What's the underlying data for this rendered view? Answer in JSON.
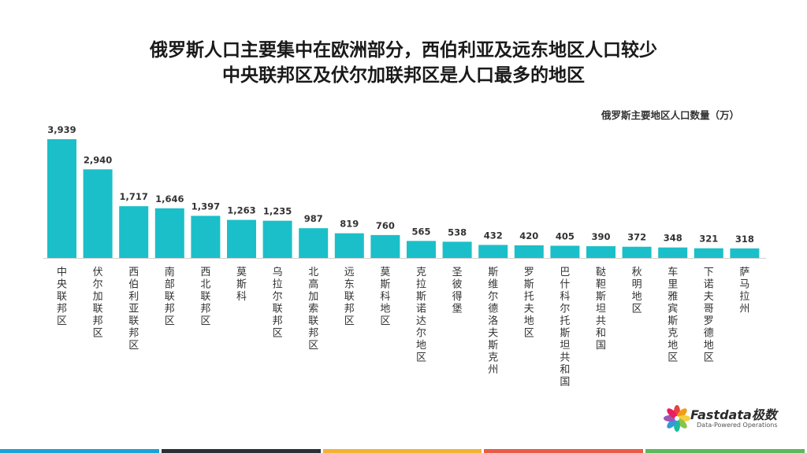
{
  "title_line1": "俄罗斯人口主要集中在欧洲部分，西伯利亚及远东地区人口较少",
  "title_line2": "中央联邦区及伏尔加联邦区是人口最多的地区",
  "unit_label": "俄罗斯主要地区人口数量（万）",
  "logo": {
    "name": "Fastdata极数",
    "tagline": "Data-Powered Operations"
  },
  "colors": {
    "bar": "#1bbfc9",
    "footer": [
      "#1aa3d8",
      "#2b2f36",
      "#f2b233",
      "#e85c45",
      "#5cb85c"
    ],
    "logo_petals": [
      "#e8423f",
      "#f39c12",
      "#f4d03f",
      "#8bc34a",
      "#1abc9c",
      "#3498db",
      "#9b59b6",
      "#e91e63"
    ]
  },
  "chart_data": {
    "type": "bar",
    "title": "俄罗斯主要地区人口数量（万）",
    "categories": [
      "中央联邦区",
      "伏尔加联邦区",
      "西伯利亚联邦区",
      "南部联邦区",
      "西北联邦区",
      "莫斯科",
      "乌拉尔联邦区",
      "北高加索联邦区",
      "远东联邦区",
      "莫斯科地区",
      "克拉斯诺达尔地区",
      "圣彼得堡",
      "斯维尔德洛夫斯克州",
      "罗斯托夫地区",
      "巴什科尔托斯坦共和国",
      "鞑靼斯坦共和国",
      "秋明地区",
      "车里雅宾斯克地区",
      "下诺夫哥罗德地区",
      "萨马拉州"
    ],
    "values": [
      3939,
      2940,
      1717,
      1646,
      1397,
      1263,
      1235,
      987,
      819,
      760,
      565,
      538,
      432,
      420,
      405,
      390,
      372,
      348,
      321,
      318
    ],
    "value_labels": [
      "3,939",
      "2,940",
      "1,717",
      "1,646",
      "1,397",
      "1,263",
      "1,235",
      "987",
      "819",
      "760",
      "565",
      "538",
      "432",
      "420",
      "405",
      "390",
      "372",
      "348",
      "321",
      "318"
    ],
    "ylim": [
      0,
      3939
    ],
    "grid": false,
    "y_axis_visible": false
  }
}
